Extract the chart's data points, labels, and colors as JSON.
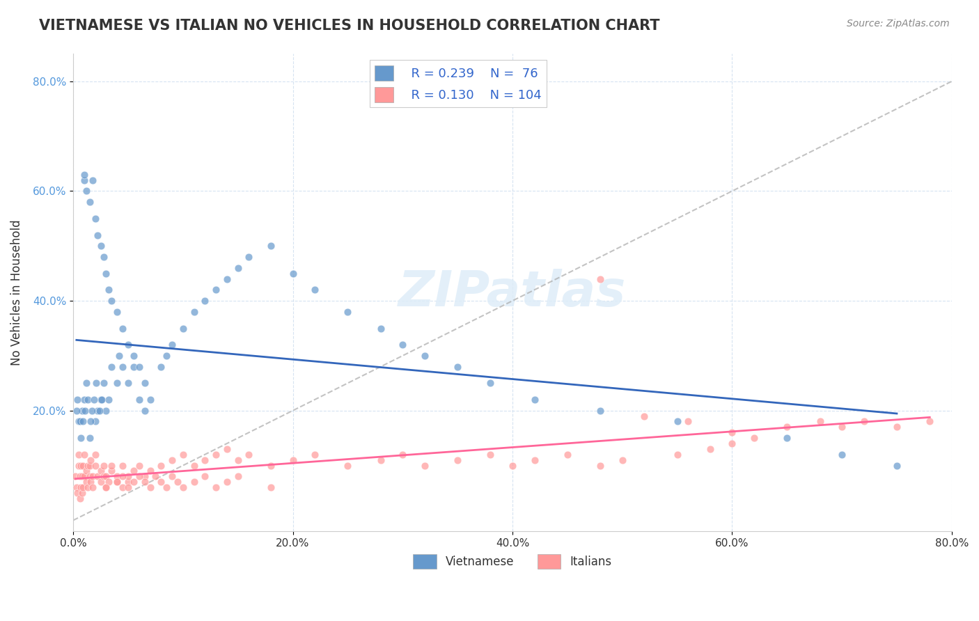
{
  "title": "VIETNAMESE VS ITALIAN NO VEHICLES IN HOUSEHOLD CORRELATION CHART",
  "source": "Source: ZipAtlas.com",
  "ylabel": "No Vehicles in Household",
  "xlabel": "",
  "watermark": "ZIPatlas",
  "xlim": [
    0.0,
    0.8
  ],
  "ylim": [
    -0.02,
    0.85
  ],
  "xtick_labels": [
    "0.0%",
    "20.0%",
    "40.0%",
    "60.0%",
    "80.0%"
  ],
  "xtick_vals": [
    0.0,
    0.2,
    0.4,
    0.6,
    0.8
  ],
  "ytick_labels": [
    "20.0%",
    "40.0%",
    "60.0%",
    "80.0%"
  ],
  "ytick_vals": [
    0.2,
    0.4,
    0.6,
    0.8
  ],
  "legend_r1": "R = 0.239",
  "legend_n1": "N =  76",
  "legend_r2": "R = 0.130",
  "legend_n2": "N = 104",
  "color_vietnamese": "#6699CC",
  "color_italians": "#FF9999",
  "color_trendline_vietnamese": "#3366BB",
  "color_trendline_italians": "#FF6699",
  "color_diagonal": "#AAAAAA",
  "background_color": "#FFFFFF",
  "vietnamese_x": [
    0.005,
    0.008,
    0.01,
    0.01,
    0.01,
    0.012,
    0.012,
    0.015,
    0.015,
    0.018,
    0.02,
    0.02,
    0.022,
    0.022,
    0.025,
    0.025,
    0.028,
    0.028,
    0.03,
    0.03,
    0.032,
    0.032,
    0.035,
    0.035,
    0.04,
    0.04,
    0.042,
    0.045,
    0.045,
    0.05,
    0.05,
    0.055,
    0.055,
    0.06,
    0.06,
    0.065,
    0.065,
    0.07,
    0.08,
    0.085,
    0.09,
    0.1,
    0.11,
    0.12,
    0.13,
    0.14,
    0.15,
    0.16,
    0.18,
    0.2,
    0.22,
    0.25,
    0.28,
    0.3,
    0.32,
    0.35,
    0.38,
    0.42,
    0.48,
    0.55,
    0.65,
    0.7,
    0.75,
    0.003,
    0.004,
    0.006,
    0.007,
    0.009,
    0.011,
    0.013,
    0.016,
    0.017,
    0.019,
    0.021,
    0.024,
    0.026
  ],
  "vietnamese_y": [
    0.18,
    0.2,
    0.22,
    0.62,
    0.63,
    0.25,
    0.6,
    0.15,
    0.58,
    0.62,
    0.18,
    0.55,
    0.2,
    0.52,
    0.22,
    0.5,
    0.25,
    0.48,
    0.2,
    0.45,
    0.22,
    0.42,
    0.28,
    0.4,
    0.25,
    0.38,
    0.3,
    0.28,
    0.35,
    0.25,
    0.32,
    0.28,
    0.3,
    0.22,
    0.28,
    0.25,
    0.2,
    0.22,
    0.28,
    0.3,
    0.32,
    0.35,
    0.38,
    0.4,
    0.42,
    0.44,
    0.46,
    0.48,
    0.5,
    0.45,
    0.42,
    0.38,
    0.35,
    0.32,
    0.3,
    0.28,
    0.25,
    0.22,
    0.2,
    0.18,
    0.15,
    0.12,
    0.1,
    0.2,
    0.22,
    0.18,
    0.15,
    0.18,
    0.2,
    0.22,
    0.18,
    0.2,
    0.22,
    0.25,
    0.2,
    0.22
  ],
  "italians_x": [
    0.002,
    0.003,
    0.004,
    0.005,
    0.005,
    0.006,
    0.006,
    0.007,
    0.007,
    0.008,
    0.008,
    0.009,
    0.009,
    0.01,
    0.01,
    0.012,
    0.012,
    0.013,
    0.013,
    0.015,
    0.015,
    0.016,
    0.016,
    0.018,
    0.018,
    0.02,
    0.02,
    0.022,
    0.025,
    0.025,
    0.028,
    0.028,
    0.03,
    0.03,
    0.032,
    0.035,
    0.035,
    0.04,
    0.04,
    0.045,
    0.045,
    0.05,
    0.05,
    0.055,
    0.06,
    0.065,
    0.07,
    0.08,
    0.09,
    0.1,
    0.11,
    0.12,
    0.13,
    0.14,
    0.15,
    0.16,
    0.18,
    0.2,
    0.22,
    0.25,
    0.28,
    0.3,
    0.32,
    0.35,
    0.38,
    0.4,
    0.42,
    0.45,
    0.48,
    0.5,
    0.55,
    0.58,
    0.6,
    0.62,
    0.65,
    0.68,
    0.7,
    0.72,
    0.75,
    0.78,
    0.48,
    0.52,
    0.56,
    0.6,
    0.03,
    0.04,
    0.045,
    0.05,
    0.055,
    0.06,
    0.065,
    0.07,
    0.075,
    0.08,
    0.085,
    0.09,
    0.095,
    0.1,
    0.11,
    0.12,
    0.13,
    0.14,
    0.15,
    0.18
  ],
  "italians_y": [
    0.08,
    0.06,
    0.05,
    0.1,
    0.12,
    0.08,
    0.04,
    0.1,
    0.06,
    0.05,
    0.08,
    0.1,
    0.06,
    0.08,
    0.12,
    0.07,
    0.09,
    0.1,
    0.06,
    0.08,
    0.1,
    0.07,
    0.11,
    0.08,
    0.06,
    0.1,
    0.12,
    0.08,
    0.07,
    0.09,
    0.08,
    0.1,
    0.06,
    0.08,
    0.07,
    0.09,
    0.1,
    0.07,
    0.08,
    0.06,
    0.1,
    0.07,
    0.08,
    0.09,
    0.1,
    0.08,
    0.09,
    0.1,
    0.11,
    0.12,
    0.1,
    0.11,
    0.12,
    0.13,
    0.11,
    0.12,
    0.1,
    0.11,
    0.12,
    0.1,
    0.11,
    0.12,
    0.1,
    0.11,
    0.12,
    0.1,
    0.11,
    0.12,
    0.1,
    0.11,
    0.12,
    0.13,
    0.14,
    0.15,
    0.17,
    0.18,
    0.17,
    0.18,
    0.17,
    0.18,
    0.44,
    0.19,
    0.18,
    0.16,
    0.06,
    0.07,
    0.08,
    0.06,
    0.07,
    0.08,
    0.07,
    0.06,
    0.08,
    0.07,
    0.06,
    0.08,
    0.07,
    0.06,
    0.07,
    0.08,
    0.06,
    0.07,
    0.08,
    0.06
  ]
}
